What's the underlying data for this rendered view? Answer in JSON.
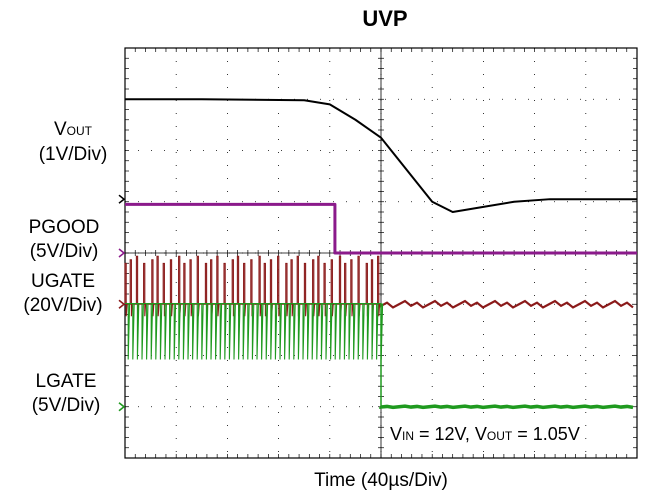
{
  "chart_data": {
    "type": "line",
    "title": "UVP",
    "xlabel": "Time (40µs/Div)",
    "x_divisions": 10,
    "y_divisions": 8,
    "annotation": {
      "vin_label": "V",
      "vin_sub": "IN",
      "vin_value": " = 12V, V",
      "vout_sub": "OUT",
      "vout_value": " = 1.05V"
    },
    "series": [
      {
        "channel": "V",
        "channel_sub": "OUT",
        "scale": "(1V/Div)",
        "color": "#000000",
        "x": [
          0,
          1.5,
          3.5,
          4.0,
          4.5,
          5.0,
          5.2,
          5.6,
          6.0,
          6.4,
          7.0,
          7.6,
          8.3,
          9.0,
          10.0
        ],
        "y": [
          7.0,
          7.0,
          6.98,
          6.9,
          6.6,
          6.25,
          6.0,
          5.5,
          5.0,
          4.8,
          4.9,
          5.0,
          5.05,
          5.05,
          5.05
        ]
      },
      {
        "channel": "PGOOD",
        "scale": "(5V/Div)",
        "color": "#8b1a8b",
        "x": [
          0,
          4.1,
          4.1,
          10
        ],
        "y": [
          4.95,
          4.95,
          4.0,
          4.0
        ]
      },
      {
        "channel": "UGATE",
        "scale": "(20V/Div)",
        "color": "#8b1a1a",
        "x": [
          0,
          5,
          5.0,
          10
        ],
        "y": [
          3.0,
          3.0,
          3.0,
          3.0
        ],
        "switching_until": 5.0
      },
      {
        "channel": "LGATE",
        "scale": "(5V/Div)",
        "color": "#1f9a1f",
        "x": [
          0,
          5,
          5.0,
          10
        ],
        "y": [
          2.0,
          2.0,
          1.0,
          1.0
        ],
        "switching_until": 5.0
      }
    ]
  }
}
